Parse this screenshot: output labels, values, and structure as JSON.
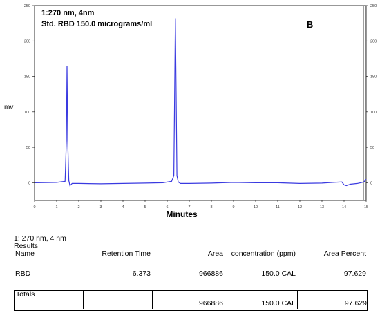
{
  "chart_data": {
    "type": "line",
    "annotations": [
      "1:270 nm, 4nm",
      "Std. RBD 150.0 micrograms/ml"
    ],
    "panel_label": "B",
    "xlabel": "Minutes",
    "ylabel": "mv",
    "xlim": [
      0,
      15
    ],
    "ylim": [
      -25,
      250
    ],
    "x_ticks": [
      "0",
      "1",
      "2",
      "3",
      "4",
      "5",
      "6",
      "7",
      "8",
      "9",
      "10",
      "11",
      "12",
      "13",
      "14",
      "15"
    ],
    "y_ticks_left": [
      "0",
      "50",
      "100",
      "150",
      "200",
      "250"
    ],
    "y_ticks_right": [
      "0",
      "50",
      "100",
      "150",
      "200",
      "250"
    ],
    "series": [
      {
        "color": "#3a3ae0",
        "x": [
          0,
          1.0,
          1.38,
          1.44,
          1.47,
          1.5,
          1.55,
          1.6,
          1.7,
          2.0,
          3.0,
          4.0,
          5.0,
          5.8,
          6.2,
          6.3,
          6.34,
          6.37,
          6.4,
          6.44,
          6.5,
          6.6,
          7.0,
          8.0,
          9.0,
          10.0,
          11.0,
          12.0,
          13.0,
          13.5,
          13.9,
          14.0,
          14.1,
          14.3,
          14.6,
          14.9,
          15.0
        ],
        "y": [
          0,
          0.5,
          2,
          60,
          165,
          60,
          3,
          -4,
          -1,
          -1,
          -1.5,
          -1,
          -0.5,
          0,
          2,
          10,
          140,
          232,
          140,
          10,
          1,
          -1,
          -1,
          -0.5,
          0.5,
          0,
          0,
          -1,
          -0.5,
          0.5,
          1,
          -3,
          -4,
          -2,
          -1,
          1,
          5
        ]
      }
    ],
    "vertical_lines_x": [
      14.88,
      14.96
    ]
  },
  "results": {
    "method_line": "1: 270 nm, 4 nm",
    "title": "Results",
    "columns": [
      "Name",
      "Retention Time",
      "Area",
      "concentration (ppm)",
      "Area Percent"
    ],
    "rows": [
      {
        "name": "RBD",
        "retention_time": "6.373",
        "area": "966886",
        "concentration": "150.0 CAL",
        "area_percent": "97.629"
      }
    ],
    "totals": {
      "label": "Totals",
      "area": "966886",
      "concentration": "150.0 CAL",
      "area_percent": "97.629"
    }
  }
}
